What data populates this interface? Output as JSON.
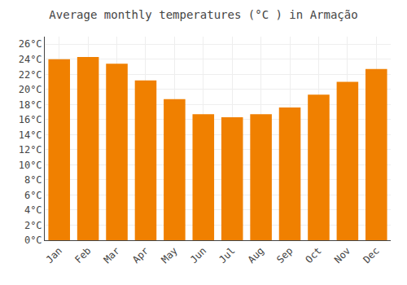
{
  "chart_data": {
    "type": "bar",
    "title": "Average monthly temperatures (°C ) in Armação",
    "categories": [
      "Jan",
      "Feb",
      "Mar",
      "Apr",
      "May",
      "Jun",
      "Jul",
      "Aug",
      "Sep",
      "Oct",
      "Nov",
      "Dec"
    ],
    "values": [
      24.0,
      24.3,
      23.4,
      21.2,
      18.7,
      16.7,
      16.3,
      16.7,
      17.6,
      19.3,
      21.0,
      22.7
    ],
    "color": "#F08000",
    "ylim": [
      0,
      27
    ],
    "yticks": [
      {
        "value": 0,
        "label": "0°C"
      },
      {
        "value": 2,
        "label": "2°C"
      },
      {
        "value": 4,
        "label": "4°C"
      },
      {
        "value": 6,
        "label": "6°C"
      },
      {
        "value": 8,
        "label": "8°C"
      },
      {
        "value": 10,
        "label": "10°C"
      },
      {
        "value": 12,
        "label": "12°C"
      },
      {
        "value": 14,
        "label": "14°C"
      },
      {
        "value": 16,
        "label": "16°C"
      },
      {
        "value": 18,
        "label": "18°C"
      },
      {
        "value": 20,
        "label": "20°C"
      },
      {
        "value": 22,
        "label": "22°C"
      },
      {
        "value": 24,
        "label": "24°C"
      },
      {
        "value": 26,
        "label": "26°C"
      }
    ],
    "grid": true
  }
}
